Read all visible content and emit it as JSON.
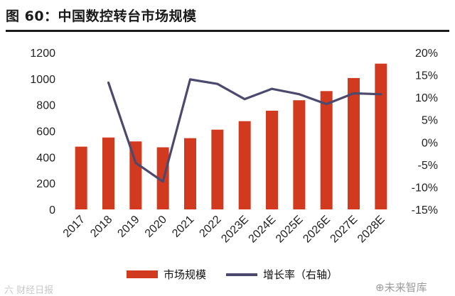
{
  "title": "图 60：中国数控转台市场规模",
  "colors": {
    "bar": "#d23a1f",
    "line": "#4b4a6e",
    "rule": "#1a1a1a"
  },
  "watermarks": {
    "left": "六 财经日报",
    "right": "⊕未来智库"
  },
  "chart_data": {
    "type": "bar+line",
    "title": "中国数控转台市场规模",
    "categories": [
      "2017",
      "2018",
      "2019",
      "2020",
      "2021",
      "2022",
      "2023E",
      "2024E",
      "2025E",
      "2026E",
      "2027E",
      "2028E"
    ],
    "series": [
      {
        "name": "市场规模",
        "type": "bar",
        "axis": "left",
        "values": [
          480,
          550,
          520,
          475,
          545,
          610,
          675,
          755,
          835,
          905,
          1005,
          1115
        ]
      },
      {
        "name": "增长率（右轴）",
        "type": "line",
        "axis": "right",
        "values": [
          null,
          13.3,
          -4.6,
          -8.8,
          14.0,
          13.0,
          9.6,
          11.9,
          10.7,
          8.5,
          10.9,
          10.7
        ]
      }
    ],
    "left_axis": {
      "min": 0,
      "max": 1200,
      "step": 200,
      "ticks": [
        "0",
        "200",
        "400",
        "600",
        "800",
        "1000",
        "1200"
      ]
    },
    "right_axis": {
      "min": -15,
      "max": 20,
      "step": 5,
      "ticks": [
        "-15%",
        "-10%",
        "-5%",
        "0%",
        "5%",
        "10%",
        "15%",
        "20%"
      ]
    },
    "legend": {
      "bar": "市场规模",
      "line": "增长率（右轴）",
      "position": "bottom"
    },
    "grid": false
  }
}
